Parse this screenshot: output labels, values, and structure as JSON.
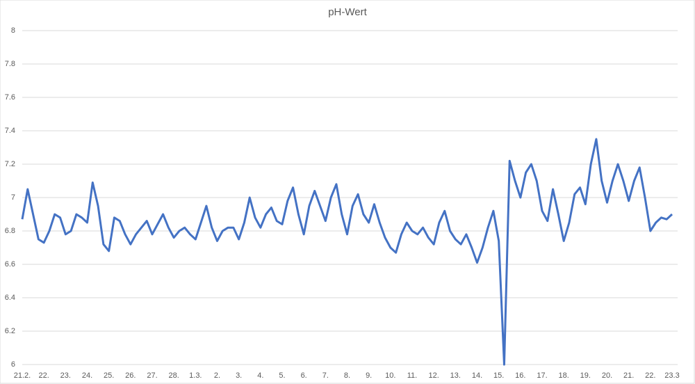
{
  "chart_data": {
    "type": "line",
    "title": "pH-Wert",
    "categories": [
      "21.2.",
      null,
      null,
      null,
      "22.",
      null,
      null,
      null,
      "23.",
      null,
      null,
      null,
      "24.",
      null,
      null,
      null,
      "25.",
      null,
      null,
      null,
      "26.",
      null,
      null,
      null,
      "27.",
      null,
      null,
      null,
      "28.",
      null,
      null,
      null,
      "1.3.",
      null,
      null,
      null,
      "2.",
      null,
      null,
      null,
      "3.",
      null,
      null,
      null,
      "4.",
      null,
      null,
      null,
      "5.",
      null,
      null,
      null,
      "6.",
      null,
      null,
      null,
      "7.",
      null,
      null,
      null,
      "8.",
      null,
      null,
      null,
      "9.",
      null,
      null,
      null,
      "10.",
      null,
      null,
      null,
      "11.",
      null,
      null,
      null,
      "12.",
      null,
      null,
      null,
      "13.",
      null,
      null,
      null,
      "14.",
      null,
      null,
      null,
      "15.",
      null,
      null,
      null,
      "16.",
      null,
      null,
      null,
      "17.",
      null,
      null,
      null,
      "18.",
      null,
      null,
      null,
      "19.",
      null,
      null,
      null,
      "20.",
      null,
      null,
      null,
      "21.",
      null,
      null,
      null,
      "22.",
      null,
      null,
      null,
      "23.3"
    ],
    "series": [
      {
        "name": "pH-Wert",
        "color": "#4472c4",
        "values": [
          6.87,
          7.05,
          6.9,
          6.75,
          6.73,
          6.8,
          6.9,
          6.88,
          6.78,
          6.8,
          6.9,
          6.88,
          6.85,
          7.09,
          6.95,
          6.72,
          6.68,
          6.88,
          6.86,
          6.78,
          6.72,
          6.78,
          6.82,
          6.86,
          6.78,
          6.84,
          6.9,
          6.82,
          6.76,
          6.8,
          6.82,
          6.78,
          6.75,
          6.85,
          6.95,
          6.82,
          6.74,
          6.8,
          6.82,
          6.82,
          6.75,
          6.85,
          7.0,
          6.88,
          6.82,
          6.9,
          6.94,
          6.86,
          6.84,
          6.98,
          7.06,
          6.9,
          6.78,
          6.95,
          7.04,
          6.95,
          6.86,
          7.0,
          7.08,
          6.9,
          6.78,
          6.95,
          7.02,
          6.9,
          6.85,
          6.96,
          6.85,
          6.76,
          6.7,
          6.67,
          6.78,
          6.85,
          6.8,
          6.78,
          6.82,
          6.76,
          6.72,
          6.85,
          6.92,
          6.8,
          6.75,
          6.72,
          6.78,
          6.7,
          6.61,
          6.7,
          6.82,
          6.92,
          6.74,
          6.0,
          7.22,
          7.1,
          7.0,
          7.15,
          7.2,
          7.1,
          6.92,
          6.86,
          7.05,
          6.9,
          6.74,
          6.85,
          7.02,
          7.06,
          6.96,
          7.2,
          7.35,
          7.1,
          6.97,
          7.1,
          7.2,
          7.1,
          6.98,
          7.1,
          7.18,
          7.0,
          6.8,
          6.85,
          6.88,
          6.87,
          6.9
        ]
      }
    ],
    "ylim": [
      6,
      8
    ],
    "yticks": [
      6,
      6.2,
      6.4,
      6.6,
      6.8,
      7,
      7.2,
      7.4,
      7.6,
      7.8,
      8
    ],
    "grid": true
  }
}
